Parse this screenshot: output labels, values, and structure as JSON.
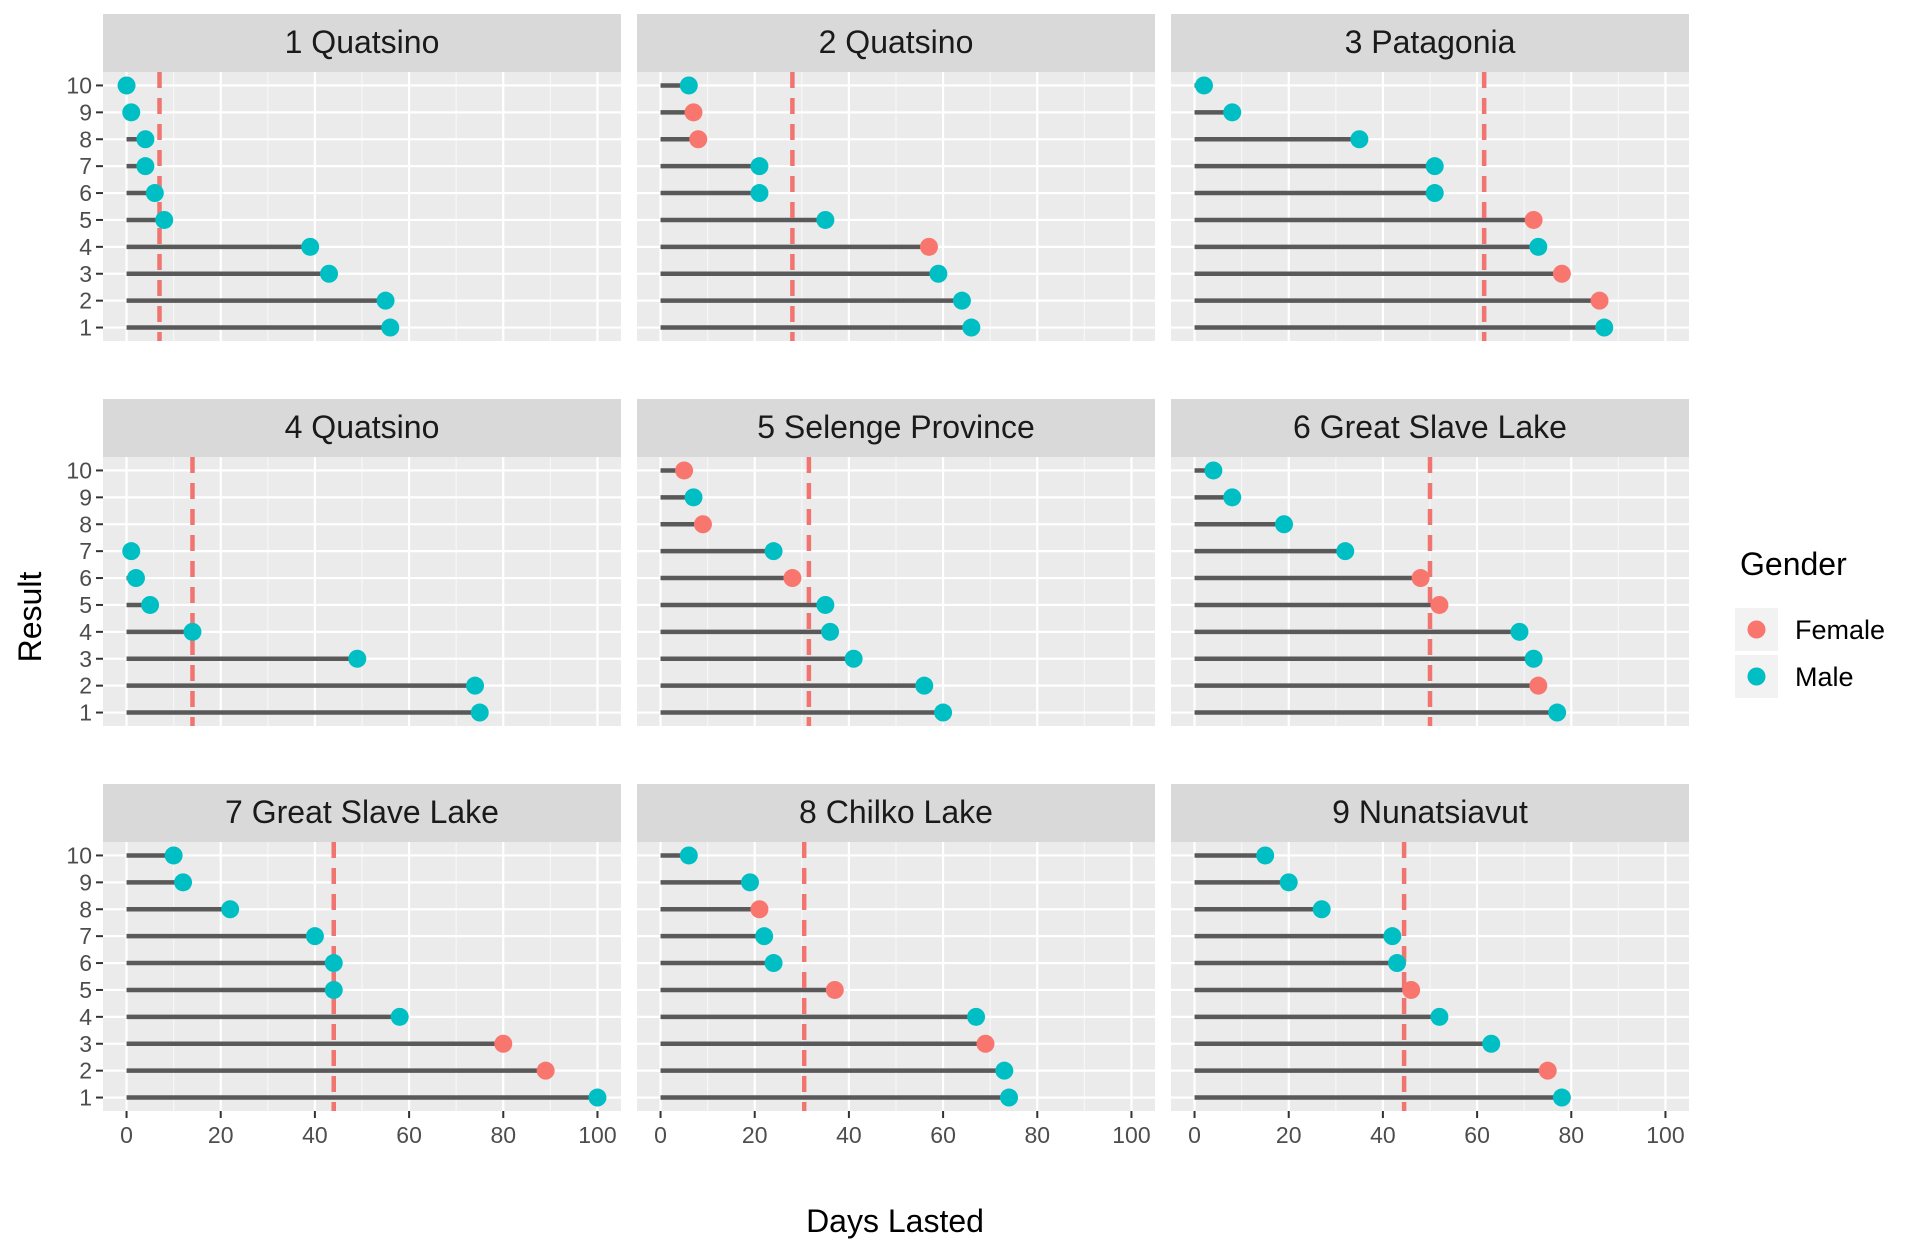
{
  "chart_data": {
    "type": "lollipop",
    "xlabel": "Days Lasted",
    "ylabel": "Result",
    "xlim": [
      -5,
      105
    ],
    "xticks": [
      0,
      20,
      40,
      60,
      80,
      100
    ],
    "ylim": [
      0.5,
      10.5
    ],
    "yticks": [
      1,
      2,
      3,
      4,
      5,
      6,
      7,
      8,
      9,
      10
    ],
    "grid": true,
    "reference_line": {
      "style": "dashed",
      "color": "#F07470"
    },
    "legend": {
      "title": "Gender",
      "placement": "right",
      "entries": [
        {
          "label": "Female",
          "color": "#F8766D"
        },
        {
          "label": "Male",
          "color": "#00BFC4"
        }
      ]
    },
    "panels": [
      {
        "title": "1 Quatsino",
        "mean": 7,
        "points": [
          {
            "result": 10,
            "days": 0,
            "gender": "Male"
          },
          {
            "result": 9,
            "days": 1,
            "gender": "Male"
          },
          {
            "result": 8,
            "days": 4,
            "gender": "Male"
          },
          {
            "result": 7,
            "days": 4,
            "gender": "Male"
          },
          {
            "result": 6,
            "days": 6,
            "gender": "Male"
          },
          {
            "result": 5,
            "days": 8,
            "gender": "Male"
          },
          {
            "result": 4,
            "days": 39,
            "gender": "Male"
          },
          {
            "result": 3,
            "days": 43,
            "gender": "Male"
          },
          {
            "result": 2,
            "days": 55,
            "gender": "Male"
          },
          {
            "result": 1,
            "days": 56,
            "gender": "Male"
          }
        ]
      },
      {
        "title": "2 Quatsino",
        "mean": 28,
        "points": [
          {
            "result": 10,
            "days": 6,
            "gender": "Male"
          },
          {
            "result": 9,
            "days": 7,
            "gender": "Female"
          },
          {
            "result": 8,
            "days": 8,
            "gender": "Female"
          },
          {
            "result": 7,
            "days": 21,
            "gender": "Male"
          },
          {
            "result": 6,
            "days": 21,
            "gender": "Male"
          },
          {
            "result": 5,
            "days": 35,
            "gender": "Male"
          },
          {
            "result": 4,
            "days": 57,
            "gender": "Female"
          },
          {
            "result": 3,
            "days": 59,
            "gender": "Male"
          },
          {
            "result": 2,
            "days": 64,
            "gender": "Male"
          },
          {
            "result": 1,
            "days": 66,
            "gender": "Male"
          }
        ]
      },
      {
        "title": "3 Patagonia",
        "mean": 61.5,
        "points": [
          {
            "result": 10,
            "days": 2,
            "gender": "Male"
          },
          {
            "result": 9,
            "days": 8,
            "gender": "Male"
          },
          {
            "result": 8,
            "days": 35,
            "gender": "Male"
          },
          {
            "result": 7,
            "days": 51,
            "gender": "Male"
          },
          {
            "result": 6,
            "days": 51,
            "gender": "Male"
          },
          {
            "result": 5,
            "days": 72,
            "gender": "Female"
          },
          {
            "result": 4,
            "days": 73,
            "gender": "Male"
          },
          {
            "result": 3,
            "days": 78,
            "gender": "Female"
          },
          {
            "result": 2,
            "days": 86,
            "gender": "Female"
          },
          {
            "result": 1,
            "days": 87,
            "gender": "Male"
          }
        ]
      },
      {
        "title": "4 Quatsino",
        "mean": 14,
        "points": [
          {
            "result": 7,
            "days": 1,
            "gender": "Male"
          },
          {
            "result": 6,
            "days": 2,
            "gender": "Male"
          },
          {
            "result": 5,
            "days": 5,
            "gender": "Male"
          },
          {
            "result": 4,
            "days": 14,
            "gender": "Male"
          },
          {
            "result": 3,
            "days": 49,
            "gender": "Male"
          },
          {
            "result": 2,
            "days": 74,
            "gender": "Male"
          },
          {
            "result": 1,
            "days": 75,
            "gender": "Male"
          }
        ]
      },
      {
        "title": "5 Selenge Province",
        "mean": 31.5,
        "points": [
          {
            "result": 10,
            "days": 5,
            "gender": "Female"
          },
          {
            "result": 9,
            "days": 7,
            "gender": "Male"
          },
          {
            "result": 8,
            "days": 9,
            "gender": "Female"
          },
          {
            "result": 7,
            "days": 24,
            "gender": "Male"
          },
          {
            "result": 6,
            "days": 28,
            "gender": "Female"
          },
          {
            "result": 5,
            "days": 35,
            "gender": "Male"
          },
          {
            "result": 4,
            "days": 36,
            "gender": "Male"
          },
          {
            "result": 3,
            "days": 41,
            "gender": "Male"
          },
          {
            "result": 2,
            "days": 56,
            "gender": "Male"
          },
          {
            "result": 1,
            "days": 60,
            "gender": "Male"
          }
        ]
      },
      {
        "title": "6 Great Slave Lake",
        "mean": 50,
        "points": [
          {
            "result": 10,
            "days": 4,
            "gender": "Male"
          },
          {
            "result": 9,
            "days": 8,
            "gender": "Male"
          },
          {
            "result": 8,
            "days": 19,
            "gender": "Male"
          },
          {
            "result": 7,
            "days": 32,
            "gender": "Male"
          },
          {
            "result": 6,
            "days": 48,
            "gender": "Female"
          },
          {
            "result": 5,
            "days": 52,
            "gender": "Female"
          },
          {
            "result": 4,
            "days": 69,
            "gender": "Male"
          },
          {
            "result": 3,
            "days": 72,
            "gender": "Male"
          },
          {
            "result": 2,
            "days": 73,
            "gender": "Female"
          },
          {
            "result": 1,
            "days": 77,
            "gender": "Male"
          }
        ]
      },
      {
        "title": "7 Great Slave Lake",
        "mean": 44,
        "points": [
          {
            "result": 10,
            "days": 10,
            "gender": "Male"
          },
          {
            "result": 9,
            "days": 12,
            "gender": "Male"
          },
          {
            "result": 8,
            "days": 22,
            "gender": "Male"
          },
          {
            "result": 7,
            "days": 40,
            "gender": "Male"
          },
          {
            "result": 6,
            "days": 44,
            "gender": "Male"
          },
          {
            "result": 5,
            "days": 44,
            "gender": "Male"
          },
          {
            "result": 4,
            "days": 58,
            "gender": "Male"
          },
          {
            "result": 3,
            "days": 80,
            "gender": "Female"
          },
          {
            "result": 2,
            "days": 89,
            "gender": "Female"
          },
          {
            "result": 1,
            "days": 100,
            "gender": "Male"
          }
        ]
      },
      {
        "title": "8 Chilko Lake",
        "mean": 30.5,
        "points": [
          {
            "result": 10,
            "days": 6,
            "gender": "Male"
          },
          {
            "result": 9,
            "days": 19,
            "gender": "Male"
          },
          {
            "result": 8,
            "days": 21,
            "gender": "Female"
          },
          {
            "result": 7,
            "days": 22,
            "gender": "Male"
          },
          {
            "result": 6,
            "days": 24,
            "gender": "Male"
          },
          {
            "result": 5,
            "days": 37,
            "gender": "Female"
          },
          {
            "result": 4,
            "days": 67,
            "gender": "Male"
          },
          {
            "result": 3,
            "days": 69,
            "gender": "Female"
          },
          {
            "result": 2,
            "days": 73,
            "gender": "Male"
          },
          {
            "result": 1,
            "days": 74,
            "gender": "Male"
          }
        ]
      },
      {
        "title": "9 Nunatsiavut",
        "mean": 44.5,
        "points": [
          {
            "result": 10,
            "days": 15,
            "gender": "Male"
          },
          {
            "result": 9,
            "days": 20,
            "gender": "Male"
          },
          {
            "result": 8,
            "days": 27,
            "gender": "Male"
          },
          {
            "result": 7,
            "days": 42,
            "gender": "Male"
          },
          {
            "result": 6,
            "days": 43,
            "gender": "Male"
          },
          {
            "result": 5,
            "days": 46,
            "gender": "Female"
          },
          {
            "result": 4,
            "days": 52,
            "gender": "Male"
          },
          {
            "result": 3,
            "days": 63,
            "gender": "Male"
          },
          {
            "result": 2,
            "days": 75,
            "gender": "Female"
          },
          {
            "result": 1,
            "days": 78,
            "gender": "Male"
          }
        ]
      }
    ]
  }
}
